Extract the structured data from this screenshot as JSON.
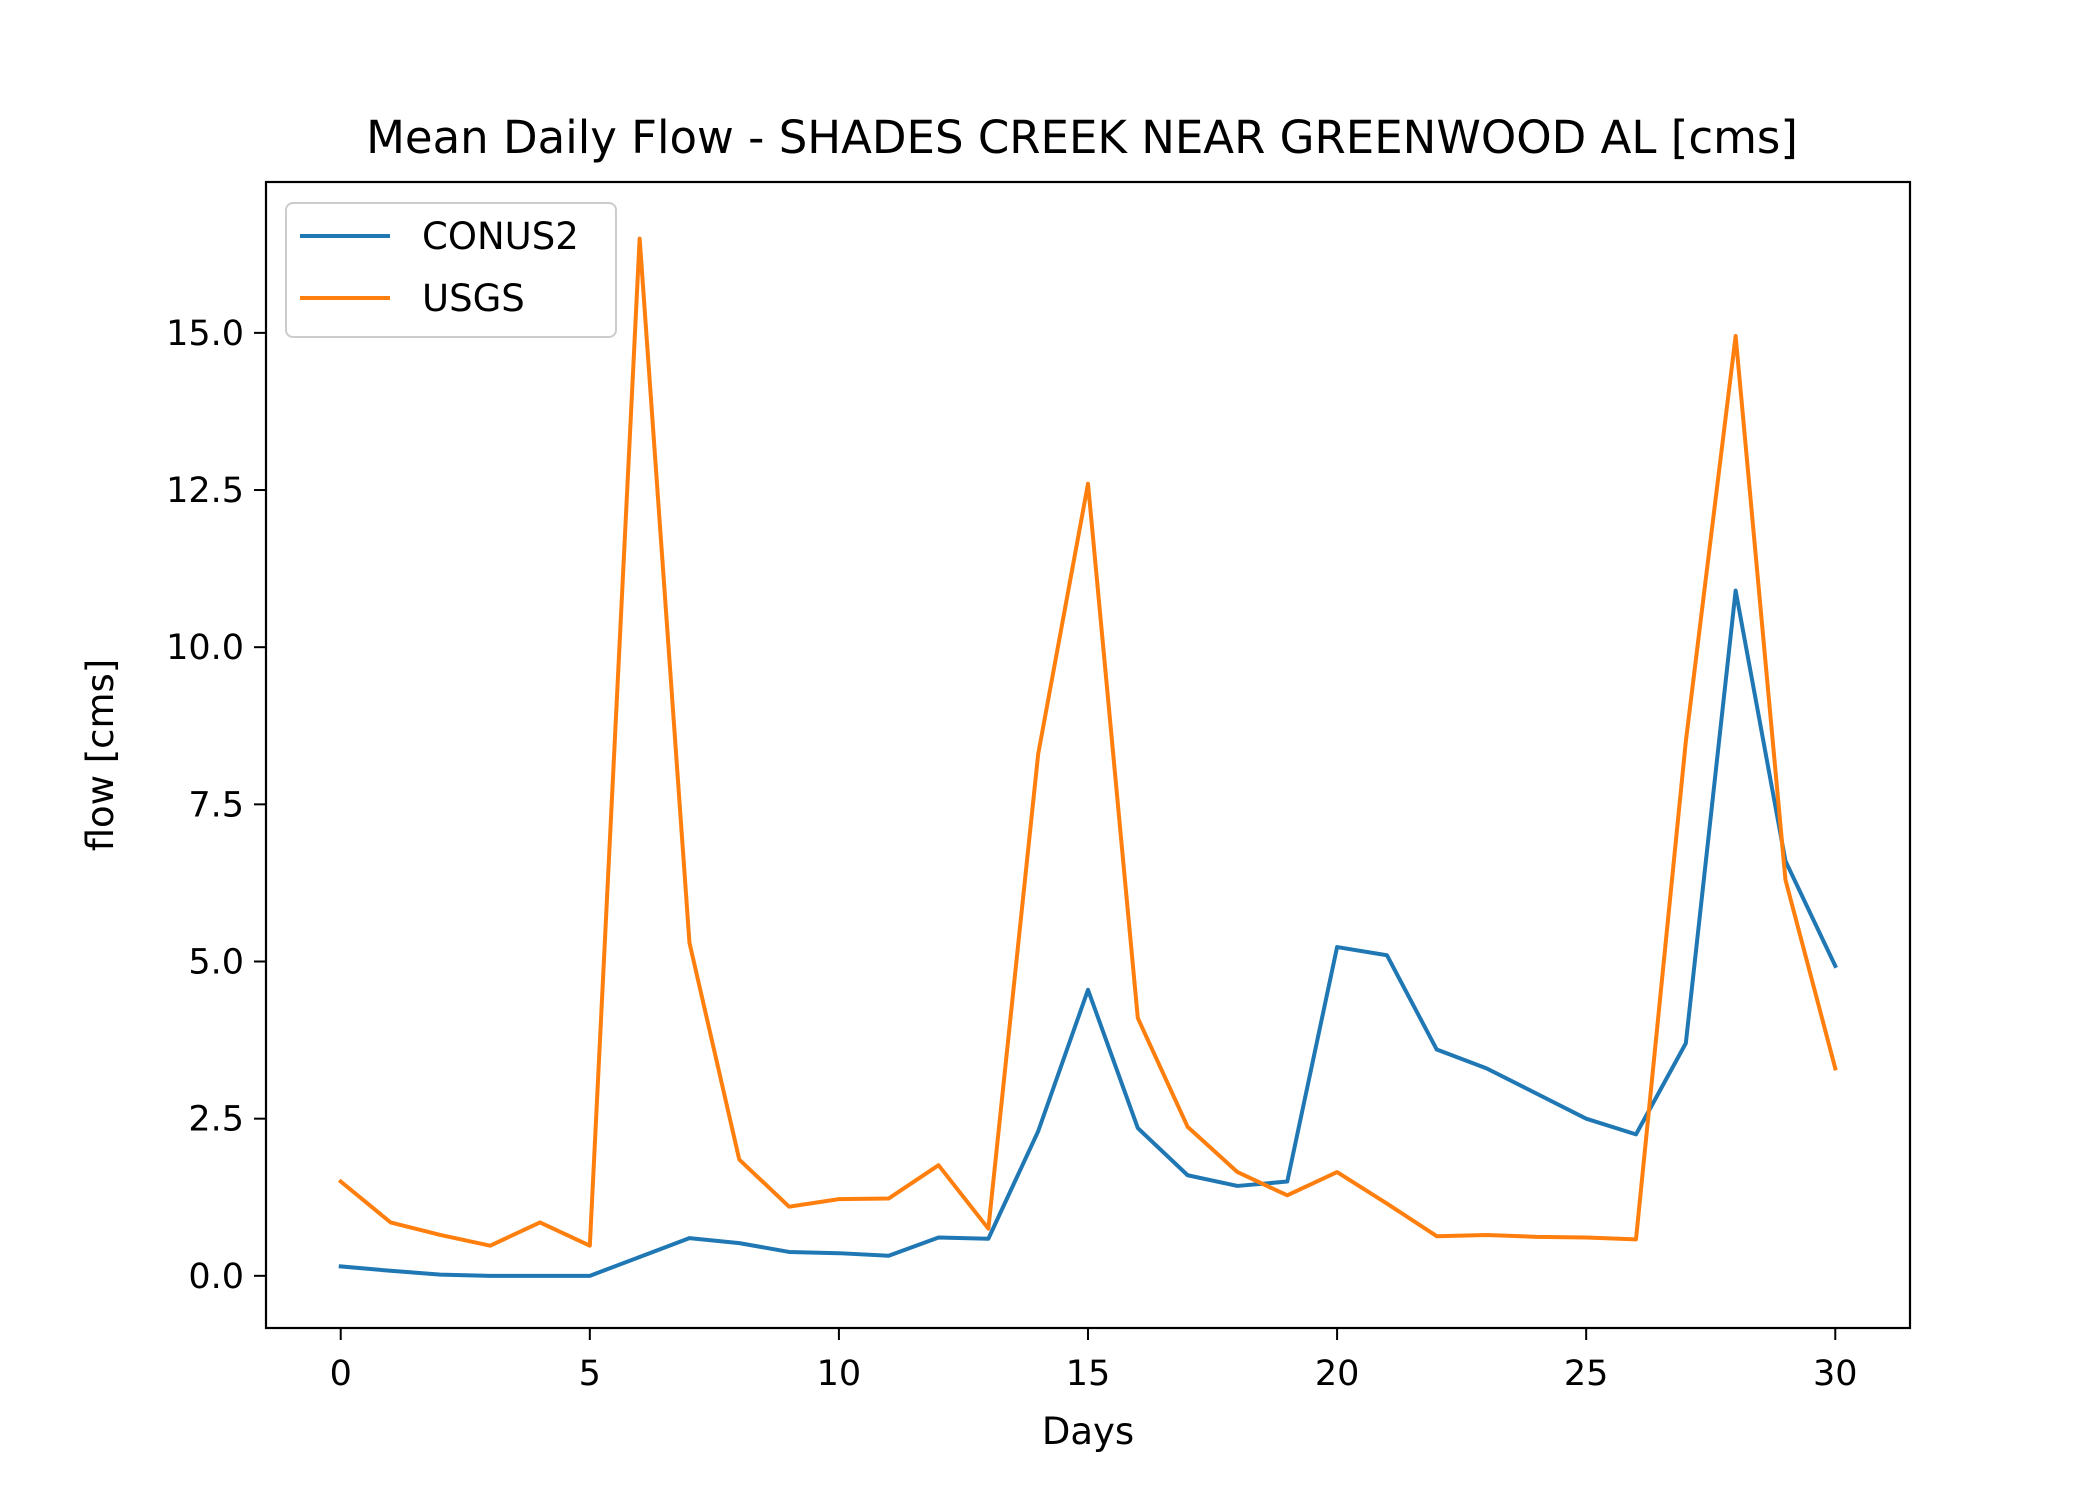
{
  "colors": {
    "conus2": "#1f77b4",
    "usgs": "#ff7f0e",
    "axes": "#000000",
    "legend_border": "#cccccc"
  },
  "chart_data": {
    "type": "line",
    "title": "Mean Daily Flow - SHADES CREEK NEAR GREENWOOD AL [cms]",
    "xlabel": "Days",
    "ylabel": "flow [cms]",
    "xlim": [
      -1.5,
      31.5
    ],
    "ylim": [
      -0.83,
      17.4
    ],
    "xticks": [
      0,
      5,
      10,
      15,
      20,
      25,
      30
    ],
    "xtick_labels": [
      "0",
      "5",
      "10",
      "15",
      "20",
      "25",
      "30"
    ],
    "yticks": [
      0,
      2.5,
      5,
      7.5,
      10,
      12.5,
      15
    ],
    "ytick_labels": [
      "0.0",
      "2.5",
      "5.0",
      "7.5",
      "10.0",
      "12.5",
      "15.0"
    ],
    "grid": false,
    "legend_position": "top-left",
    "x": [
      0,
      1,
      2,
      3,
      4,
      5,
      6,
      7,
      8,
      9,
      10,
      11,
      12,
      13,
      14,
      15,
      16,
      17,
      18,
      19,
      20,
      21,
      22,
      23,
      24,
      25,
      26,
      27,
      28,
      29,
      30
    ],
    "series": [
      {
        "name": "CONUS2",
        "color": "#1f77b4",
        "values": [
          0.15,
          0.08,
          0.02,
          0.0,
          0.0,
          0.0,
          0.3,
          0.6,
          0.52,
          0.38,
          0.36,
          0.32,
          0.61,
          0.59,
          2.3,
          4.55,
          2.35,
          1.6,
          1.43,
          1.5,
          5.23,
          5.1,
          3.6,
          3.3,
          2.9,
          2.5,
          2.25,
          3.7,
          10.9,
          6.6,
          4.93
        ]
      },
      {
        "name": "USGS",
        "color": "#ff7f0e",
        "values": [
          1.5,
          0.85,
          0.65,
          0.48,
          0.85,
          0.48,
          16.5,
          5.3,
          1.85,
          1.1,
          1.22,
          1.23,
          1.76,
          0.75,
          8.3,
          12.6,
          4.1,
          2.37,
          1.65,
          1.28,
          1.65,
          1.15,
          0.63,
          0.65,
          0.62,
          0.61,
          0.58,
          8.5,
          14.95,
          6.3,
          3.3
        ]
      }
    ]
  }
}
